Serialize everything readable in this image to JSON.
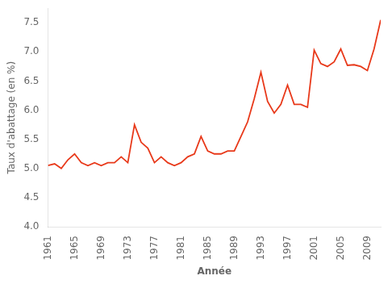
{
  "chart_data": {
    "type": "line",
    "x": [
      1961,
      1962,
      1963,
      1964,
      1965,
      1966,
      1967,
      1968,
      1969,
      1970,
      1971,
      1972,
      1973,
      1974,
      1975,
      1976,
      1977,
      1978,
      1979,
      1980,
      1981,
      1982,
      1983,
      1984,
      1985,
      1986,
      1987,
      1988,
      1989,
      1990,
      1991,
      1992,
      1993,
      1994,
      1995,
      1996,
      1997,
      1998,
      1999,
      2000,
      2001,
      2002,
      2003,
      2004,
      2005,
      2006,
      2007,
      2008,
      2009,
      2010,
      2011
    ],
    "values": [
      5.05,
      5.08,
      5.0,
      5.15,
      5.25,
      5.1,
      5.05,
      5.1,
      5.05,
      5.1,
      5.1,
      5.2,
      5.1,
      5.75,
      5.45,
      5.35,
      5.1,
      5.2,
      5.1,
      5.05,
      5.1,
      5.2,
      5.25,
      5.55,
      5.3,
      5.25,
      5.25,
      5.3,
      5.3,
      5.55,
      5.8,
      6.2,
      6.65,
      6.15,
      5.95,
      6.1,
      6.43,
      6.1,
      6.1,
      6.05,
      7.03,
      6.8,
      6.75,
      6.83,
      7.05,
      6.77,
      6.78,
      6.75,
      6.68,
      7.05,
      7.55
    ],
    "color": "#e8391a",
    "x_label": "Année",
    "y_label": "Taux d'abattage (en %)",
    "xlim": [
      1961,
      2011
    ],
    "xticks": [
      1961,
      1965,
      1969,
      1973,
      1977,
      1981,
      1985,
      1989,
      1993,
      1997,
      2001,
      2005,
      2009
    ],
    "ylim": [
      4.0,
      7.75
    ],
    "yticks": [
      {
        "value": 4.0,
        "label": "4.0"
      },
      4.5,
      {
        "value": 5.0,
        "label": "5.0"
      },
      5.5,
      {
        "value": 6.0,
        "label": "6.0"
      },
      6.5,
      {
        "value": 7.0,
        "label": "7.0"
      },
      7.5
    ],
    "grid": false
  }
}
